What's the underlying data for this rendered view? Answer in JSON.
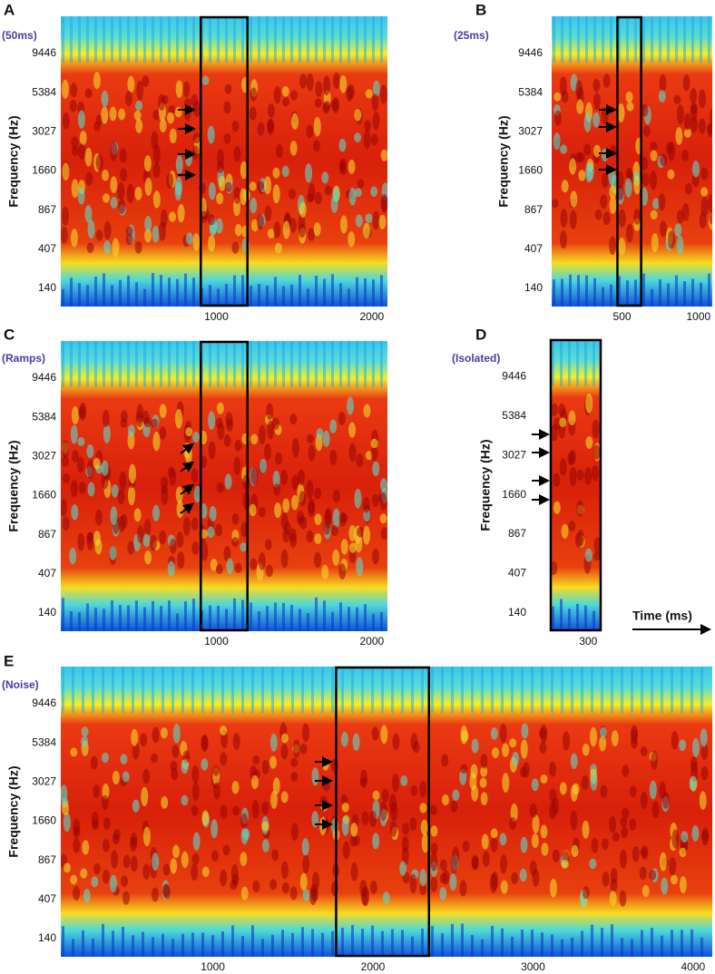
{
  "chart_data": [
    {
      "type": "spectrogram",
      "panel": "A",
      "label": "(50ms)",
      "y_label": "Frequency (Hz)",
      "yscale": "erb",
      "ylim": [
        58,
        16000
      ],
      "yticks": [
        140,
        407,
        867,
        1660,
        3027,
        5384,
        9446
      ],
      "xlim": [
        0,
        2100
      ],
      "xticks": [
        1000,
        2000
      ],
      "highlight": [
        900,
        1200
      ]
    },
    {
      "type": "spectrogram",
      "panel": "B",
      "label": "(25ms)",
      "y_label": "Frequency (Hz)",
      "yscale": "erb",
      "ylim": [
        58,
        16000
      ],
      "yticks": [
        140,
        407,
        867,
        1660,
        3027,
        5384,
        9446
      ],
      "xlim": [
        40,
        1090
      ],
      "xticks": [
        500,
        1000
      ],
      "highlight": [
        470,
        625
      ]
    },
    {
      "type": "spectrogram",
      "panel": "C",
      "label": "(Ramps)",
      "y_label": "Frequency (Hz)",
      "yscale": "erb",
      "ylim": [
        58,
        16000
      ],
      "yticks": [
        140,
        407,
        867,
        1660,
        3027,
        5384,
        9446
      ],
      "xlim": [
        0,
        2100
      ],
      "xticks": [
        1000,
        2000
      ],
      "highlight": [
        900,
        1200
      ]
    },
    {
      "type": "spectrogram",
      "panel": "D",
      "label": "(Isolated)",
      "y_label": "Frequency (Hz)",
      "yscale": "erb",
      "ylim": [
        58,
        16000
      ],
      "yticks": [
        140,
        407,
        867,
        1660,
        3027,
        5384,
        9446
      ],
      "xlim": [
        0,
        400
      ],
      "xticks": [
        300
      ],
      "highlight": [
        0,
        400
      ]
    },
    {
      "type": "spectrogram",
      "panel": "E",
      "label": "(Noise)",
      "y_label": "Frequency (Hz)",
      "yscale": "erb",
      "ylim": [
        58,
        16000
      ],
      "yticks": [
        140,
        407,
        867,
        1660,
        3027,
        5384,
        9446
      ],
      "xlim": [
        50,
        4120
      ],
      "xticks": [
        1000,
        2000,
        3000,
        4000
      ],
      "highlight": [
        1770,
        2350
      ]
    }
  ],
  "time_label": "Time (ms)"
}
